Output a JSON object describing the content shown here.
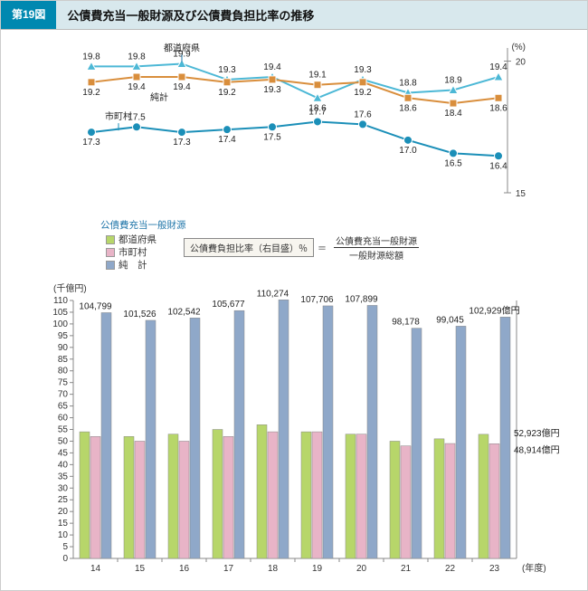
{
  "header": {
    "figNo": "第19図",
    "title": "公債費充当一般財源及び公債費負担比率の推移"
  },
  "lineChart": {
    "yAxisRightLabel": "(%)",
    "ylim": [
      15,
      20.5
    ],
    "yticks": [
      15,
      20
    ],
    "categories": [
      "14",
      "15",
      "16",
      "17",
      "18",
      "19",
      "20",
      "21",
      "22",
      "23"
    ],
    "series": {
      "pref": {
        "label": "都道府県",
        "color": "#4cb8d6",
        "marker": "triangle",
        "values": [
          19.8,
          19.8,
          19.9,
          19.3,
          19.4,
          18.6,
          19.3,
          18.8,
          18.9,
          19.4
        ]
      },
      "muni": {
        "label": "市町村",
        "color": "#1b8fb8",
        "marker": "circle",
        "values": [
          17.3,
          17.5,
          17.3,
          17.4,
          17.5,
          17.7,
          17.6,
          17.0,
          16.5,
          16.4
        ]
      },
      "total": {
        "label": "純計",
        "color": "#d98e3c",
        "marker": "square",
        "values": [
          19.2,
          19.4,
          19.4,
          19.2,
          19.3,
          19.1,
          19.2,
          18.6,
          18.4,
          18.6
        ]
      }
    }
  },
  "barChart": {
    "yAxisLeftLabel": "(千億円)",
    "xAxisLabel": "(年度)",
    "ylim": [
      0,
      110
    ],
    "ytick_step": 5,
    "categories": [
      "14",
      "15",
      "16",
      "17",
      "18",
      "19",
      "20",
      "21",
      "22",
      "23"
    ],
    "series": {
      "pref": {
        "label": "都道府県",
        "color": "#b7d66a",
        "values": [
          54,
          52,
          53,
          55,
          57,
          54,
          53,
          50,
          51,
          52.923
        ]
      },
      "muni": {
        "label": "市町村",
        "color": "#e8b4c7",
        "values": [
          52,
          50,
          50,
          52,
          54,
          54,
          53,
          48,
          49,
          48.914
        ]
      },
      "total": {
        "label": "純　計",
        "color": "#8fa8c9",
        "values": [
          104.799,
          101.526,
          102.542,
          105.677,
          110.274,
          107.706,
          107.899,
          98.178,
          99.045,
          102.929
        ]
      }
    },
    "topLabels": [
      "104,799",
      "101,526",
      "102,542",
      "105,677",
      "110,274",
      "107,706",
      "107,899",
      "98,178",
      "99,045",
      "102,929億円"
    ],
    "endLabels": {
      "pref": "52,923億円",
      "muni": "48,914億円"
    }
  },
  "legend": {
    "title": "公債費充当一般財源",
    "formulaBox": "公債費負担比率（右目盛）％",
    "formulaNum": "公債費充当一般財源",
    "formulaDen": "一般財源総額",
    "eq": "＝"
  },
  "colors": {
    "grid": "#dddddd",
    "axis": "#888888",
    "bg": "#ffffff"
  }
}
